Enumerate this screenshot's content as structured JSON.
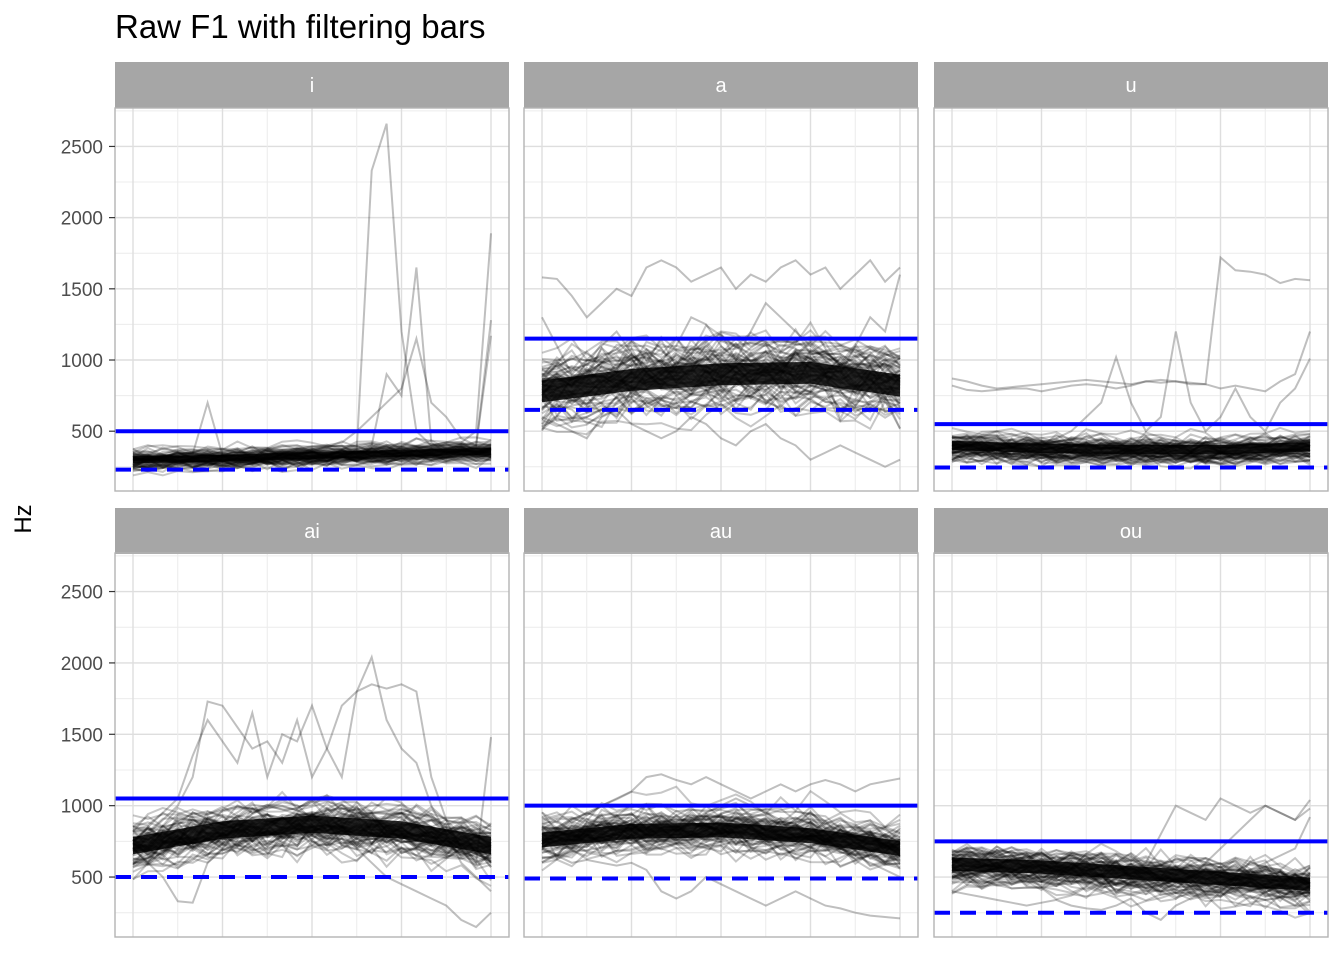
{
  "chart_data": {
    "type": "line",
    "title": "Raw F1 with filtering bars",
    "ylabel": "Hz",
    "xlabel": "",
    "ylim": [
      80,
      2770
    ],
    "yticks": [
      500,
      1000,
      1500,
      2000,
      2500
    ],
    "grid": true,
    "x_points": 25,
    "colors": {
      "strip": "#a6a6a6",
      "strip_text": "#ffffff",
      "line": "#000000",
      "bar": "#0000ff",
      "grid": "#dedede",
      "border": "#b3b3b3"
    },
    "facets": [
      {
        "label": "i",
        "upper_bar": 500,
        "lower_bar": 230,
        "band": {
          "center": [
            300,
            310,
            330,
            345,
            360
          ],
          "spread": 45,
          "noise": 55
        },
        "outliers": [
          {
            "idx": 2,
            "values": [
              300,
              310,
              320,
              330,
              340,
              700,
              330,
              320,
              320,
              330,
              340,
              340,
              350,
              360,
              370,
              380,
              2330,
              2660,
              1200,
              500,
              400,
              420,
              420,
              500,
              1890
            ]
          },
          {
            "idx": 3,
            "values": [
              300,
              300,
              310,
              320,
              320,
              330,
              330,
              330,
              340,
              350,
              350,
              360,
              360,
              370,
              380,
              380,
              400,
              900,
              750,
              1650,
              420,
              350,
              360,
              400,
              1280
            ]
          },
          {
            "idx": 4,
            "values": [
              320,
              320,
              330,
              330,
              340,
              340,
              350,
              350,
              350,
              360,
              370,
              380,
              390,
              400,
              420,
              500,
              600,
              700,
              800,
              1150,
              700,
              600,
              450,
              400,
              1170
            ]
          }
        ]
      },
      {
        "label": "a",
        "upper_bar": 1150,
        "lower_bar": 650,
        "band": {
          "center": [
            780,
            860,
            900,
            910,
            820
          ],
          "spread": 140,
          "noise": 160
        },
        "outliers": [
          {
            "idx": 2,
            "values": [
              1580,
              1570,
              1450,
              1300,
              1400,
              1500,
              1450,
              1650,
              1700,
              1650,
              1550,
              1600,
              1650,
              1500,
              1600,
              1550,
              1650,
              1700,
              1600,
              1650,
              1500,
              1600,
              1700,
              1550,
              1650
            ]
          },
          {
            "idx": 3,
            "values": [
              600,
              550,
              500,
              450,
              600,
              650,
              550,
              500,
              450,
              500,
              600,
              550,
              450,
              400,
              500,
              550,
              450,
              400,
              300,
              350,
              400,
              350,
              300,
              250,
              300
            ]
          },
          {
            "idx": 4,
            "values": [
              1300,
              1100,
              900,
              1000,
              1100,
              1200,
              1050,
              950,
              1000,
              1100,
              1300,
              1250,
              1100,
              1000,
              1200,
              1400,
              1300,
              1200,
              1100,
              1000,
              900,
              1100,
              1300,
              1200,
              1600
            ]
          }
        ]
      },
      {
        "label": "u",
        "upper_bar": 550,
        "lower_bar": 245,
        "band": {
          "center": [
            400,
            380,
            370,
            370,
            390
          ],
          "spread": 60,
          "noise": 70
        },
        "outliers": [
          {
            "idx": 2,
            "values": [
              870,
              850,
              820,
              800,
              810,
              820,
              830,
              840,
              850,
              860,
              850,
              840,
              830,
              850,
              860,
              850,
              840,
              830,
              1720,
              1630,
              1620,
              1600,
              1540,
              1570,
              1560
            ]
          },
          {
            "idx": 3,
            "values": [
              820,
              790,
              780,
              790,
              800,
              800,
              780,
              800,
              820,
              830,
              820,
              800,
              820,
              850,
              840,
              850,
              830,
              830,
              800,
              820,
              800,
              780,
              850,
              900,
              1200
            ]
          },
          {
            "idx": 4,
            "values": [
              400,
              390,
              380,
              380,
              390,
              400,
              420,
              450,
              500,
              600,
              700,
              1020,
              700,
              500,
              600,
              1200,
              700,
              500,
              600,
              800,
              600,
              500,
              700,
              800,
              1010
            ]
          }
        ]
      },
      {
        "label": "ai",
        "upper_bar": 1050,
        "lower_bar": 500,
        "band": {
          "center": [
            720,
            830,
            870,
            830,
            720
          ],
          "spread": 110,
          "noise": 130
        },
        "outliers": [
          {
            "idx": 2,
            "values": [
              700,
              800,
              900,
              1000,
              1200,
              1730,
              1700,
              1550,
              1400,
              1450,
              1300,
              1600,
              1200,
              1400,
              1700,
              1800,
              1850,
              1820,
              1850,
              1800,
              1200,
              900,
              700,
              600,
              1480
            ]
          },
          {
            "idx": 3,
            "values": [
              750,
              850,
              950,
              1050,
              1350,
              1600,
              1450,
              1300,
              1650,
              1200,
              1500,
              1450,
              1700,
              1400,
              1200,
              1800,
              2040,
              1600,
              1400,
              1300,
              1000,
              800,
              600,
              500,
              400
            ]
          },
          {
            "idx": 4,
            "values": [
              700,
              600,
              500,
              330,
              320,
              600,
              700,
              800,
              700,
              650,
              800,
              900,
              750,
              700,
              800,
              700,
              600,
              500,
              450,
              400,
              350,
              300,
              200,
              150,
              250
            ]
          }
        ]
      },
      {
        "label": "au",
        "upper_bar": 1000,
        "lower_bar": 490,
        "band": {
          "center": [
            760,
            820,
            830,
            790,
            700
          ],
          "spread": 95,
          "noise": 115
        },
        "outliers": [
          {
            "idx": 2,
            "values": [
              800,
              850,
              900,
              950,
              1000,
              1050,
              1100,
              1200,
              1220,
              1180,
              1150,
              1200,
              1150,
              1100,
              1050,
              1100,
              1150,
              1100,
              1150,
              1180,
              1150,
              1100,
              1150,
              1170,
              1190
            ]
          },
          {
            "idx": 3,
            "values": [
              700,
              650,
              600,
              620,
              600,
              580,
              600,
              550,
              400,
              350,
              400,
              500,
              450,
              400,
              350,
              300,
              350,
              400,
              350,
              300,
              280,
              250,
              230,
              220,
              210
            ]
          },
          {
            "idx": 4,
            "values": [
              800,
              780,
              760,
              750,
              740,
              750,
              760,
              780,
              800,
              850,
              900,
              950,
              1000,
              1050,
              1000,
              950,
              900,
              850,
              800,
              750,
              700,
              650,
              600,
              550,
              500
            ]
          }
        ]
      },
      {
        "label": "ou",
        "upper_bar": 750,
        "lower_bar": 250,
        "band": {
          "center": [
            590,
            570,
            530,
            490,
            450
          ],
          "spread": 85,
          "noise": 100
        },
        "outliers": [
          {
            "idx": 2,
            "values": [
              500,
              520,
              540,
              560,
              570,
              560,
              550,
              540,
              530,
              520,
              510,
              500,
              520,
              600,
              800,
              1000,
              950,
              900,
              1050,
              1000,
              950,
              1000,
              950,
              900,
              1040
            ]
          },
          {
            "idx": 3,
            "values": [
              400,
              380,
              360,
              340,
              320,
              300,
              320,
              340,
              300,
              280,
              270,
              300,
              350,
              250,
              200,
              300,
              350,
              400,
              450,
              500,
              550,
              600,
              650,
              700,
              920
            ]
          },
          {
            "idx": 4,
            "values": [
              650,
              660,
              640,
              620,
              600,
              580,
              560,
              540,
              520,
              500,
              480,
              460,
              440,
              420,
              400,
              420,
              500,
              600,
              700,
              800,
              900,
              1000,
              950,
              900,
              980
            ]
          }
        ]
      }
    ]
  }
}
